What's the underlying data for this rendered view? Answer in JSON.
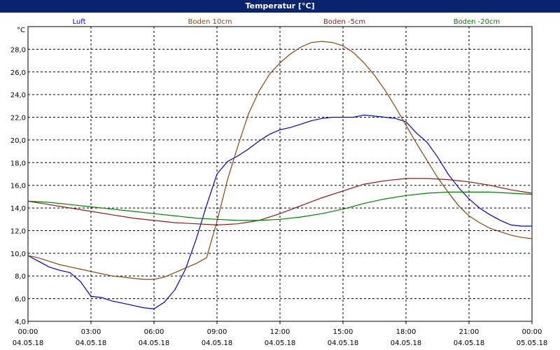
{
  "chart_data": {
    "type": "line",
    "title": "Temperatur [°C]",
    "ylabel": "°C",
    "ylim": [
      4,
      30
    ],
    "y_ticks": [
      "28,0",
      "26,0",
      "24,0",
      "22,0",
      "20,0",
      "18,0",
      "16,0",
      "14,0",
      "12,0",
      "10,0",
      "8,0",
      "6,0",
      "4,0"
    ],
    "xlim": [
      0,
      24
    ],
    "x_ticks": [
      {
        "time": "00:00",
        "date": "04.05.18",
        "h": 0
      },
      {
        "time": "03:00",
        "date": "04.05.18",
        "h": 3
      },
      {
        "time": "06:00",
        "date": "04.05.18",
        "h": 6
      },
      {
        "time": "09:00",
        "date": "04.05.18",
        "h": 9
      },
      {
        "time": "12:00",
        "date": "04.05.18",
        "h": 12
      },
      {
        "time": "15:00",
        "date": "04.05.18",
        "h": 15
      },
      {
        "time": "18:00",
        "date": "04.05.18",
        "h": 18
      },
      {
        "time": "21:00",
        "date": "04.05.18",
        "h": 21
      },
      {
        "time": "00:00",
        "date": "05.05.18",
        "h": 24
      }
    ],
    "grid": true,
    "legend": "top",
    "series": [
      {
        "name": "Luft",
        "color": "#0000cc",
        "x": [
          0,
          0.5,
          1,
          1.5,
          2,
          2.5,
          3,
          3.5,
          4,
          4.5,
          5,
          5.5,
          6,
          6.5,
          7,
          7.5,
          8,
          8.5,
          9,
          9.5,
          10,
          10.5,
          11,
          11.5,
          12,
          12.5,
          13,
          13.5,
          14,
          14.5,
          15,
          15.5,
          16,
          16.5,
          17,
          17.5,
          18,
          18.5,
          19,
          19.5,
          20,
          20.5,
          21,
          21.5,
          22,
          22.5,
          23,
          23.5,
          24
        ],
        "y": [
          9.8,
          9.3,
          8.8,
          8.5,
          8.3,
          7.5,
          6.2,
          6.1,
          5.8,
          5.6,
          5.4,
          5.2,
          5.1,
          5.7,
          6.8,
          8.6,
          11.2,
          14.2,
          17.0,
          18.1,
          18.6,
          19.2,
          19.9,
          20.5,
          20.9,
          21.1,
          21.4,
          21.7,
          21.9,
          22.0,
          22.0,
          22.0,
          22.2,
          22.1,
          22.0,
          21.9,
          21.6,
          20.6,
          19.8,
          18.5,
          17.0,
          15.8,
          14.8,
          14.0,
          13.4,
          12.9,
          12.5,
          12.4,
          12.4
        ]
      },
      {
        "name": "Boden 10cm",
        "color": "#8b4513",
        "x": [
          0,
          0.5,
          1,
          1.5,
          2,
          2.5,
          3,
          3.5,
          4,
          4.5,
          5,
          5.5,
          6,
          6.5,
          7,
          7.5,
          8,
          8.5,
          9,
          9.5,
          10,
          10.5,
          11,
          11.5,
          12,
          12.5,
          13,
          13.5,
          14,
          14.5,
          15,
          15.5,
          16,
          16.5,
          17,
          17.5,
          18,
          18.5,
          19,
          19.5,
          20,
          20.5,
          21,
          21.5,
          22,
          22.5,
          23,
          23.5,
          24
        ],
        "y": [
          9.8,
          9.6,
          9.3,
          9.0,
          8.8,
          8.6,
          8.4,
          8.2,
          8.0,
          7.9,
          7.8,
          7.7,
          7.7,
          7.9,
          8.3,
          8.7,
          9.1,
          9.6,
          12.8,
          16.5,
          19.5,
          22.3,
          24.3,
          25.8,
          26.8,
          27.6,
          28.2,
          28.6,
          28.7,
          28.6,
          28.3,
          27.7,
          26.8,
          25.7,
          24.4,
          22.9,
          21.3,
          19.7,
          18.2,
          16.7,
          15.4,
          14.2,
          13.3,
          12.7,
          12.2,
          11.9,
          11.6,
          11.4,
          11.3
        ]
      },
      {
        "name": "Boden -5cm",
        "color": "#8b1a1a",
        "x": [
          0,
          1,
          2,
          3,
          4,
          5,
          6,
          7,
          8,
          9,
          10,
          11,
          12,
          13,
          14,
          15,
          16,
          17,
          18,
          19,
          20,
          21,
          22,
          23,
          24
        ],
        "y": [
          14.6,
          14.3,
          14.0,
          13.7,
          13.4,
          13.1,
          12.9,
          12.7,
          12.6,
          12.5,
          12.6,
          12.9,
          13.5,
          14.2,
          14.9,
          15.5,
          16.1,
          16.4,
          16.6,
          16.6,
          16.5,
          16.3,
          16.0,
          15.6,
          15.3
        ]
      },
      {
        "name": "Boden -20cm",
        "color": "#008000",
        "x": [
          0,
          1,
          2,
          3,
          4,
          5,
          6,
          7,
          8,
          9,
          10,
          11,
          12,
          13,
          14,
          15,
          16,
          17,
          18,
          19,
          20,
          21,
          22,
          23,
          24
        ],
        "y": [
          14.6,
          14.5,
          14.3,
          14.1,
          13.9,
          13.7,
          13.5,
          13.3,
          13.1,
          13.0,
          12.9,
          12.9,
          13.0,
          13.2,
          13.5,
          13.9,
          14.4,
          14.8,
          15.1,
          15.3,
          15.4,
          15.4,
          15.4,
          15.3,
          15.2
        ]
      }
    ]
  }
}
